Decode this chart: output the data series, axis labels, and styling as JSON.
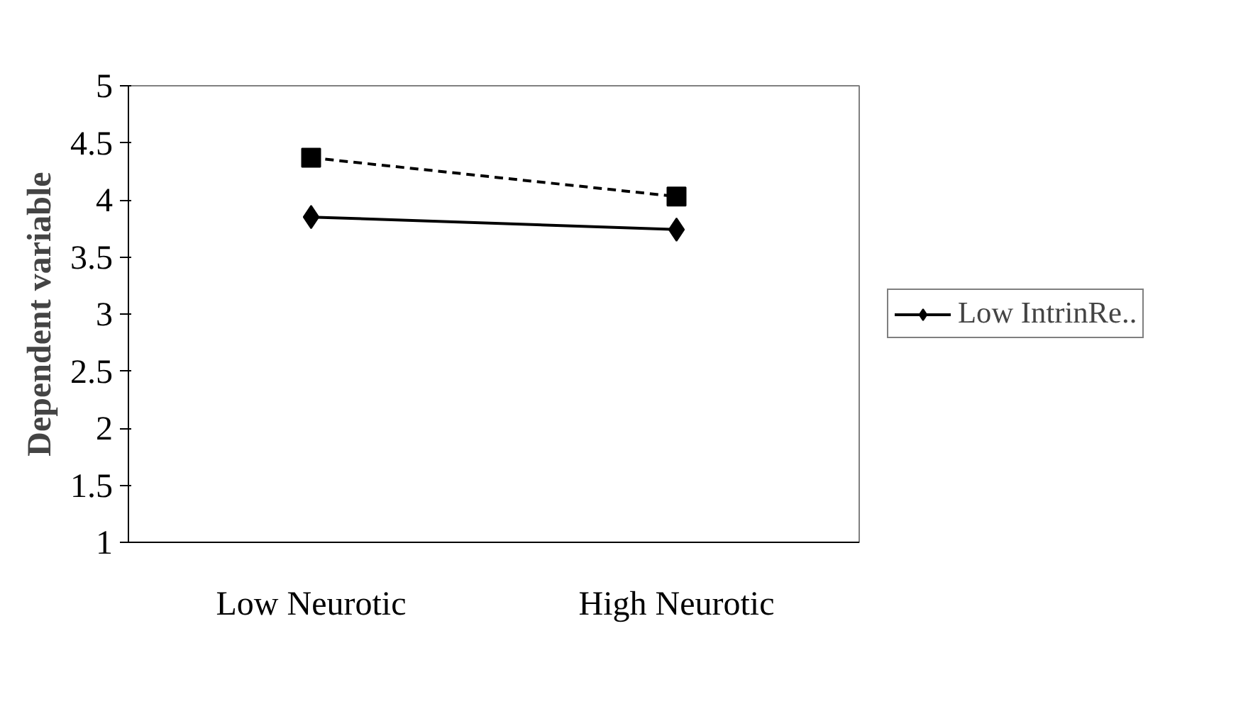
{
  "chart_data": {
    "type": "line",
    "ylabel": "Dependent variable",
    "categories": [
      "Low Neurotic",
      "High Neurotic"
    ],
    "series": [
      {
        "name": "Low IntrinRe..",
        "color": "#000000",
        "values": [
          3.85,
          3.74
        ],
        "marker": "diamond",
        "line_style": "solid"
      },
      {
        "color": "#000000",
        "values": [
          4.37,
          4.03
        ],
        "marker": "square",
        "line_style": "dashed"
      }
    ],
    "ylim": [
      1,
      5
    ],
    "yticks": [
      1,
      1.5,
      2,
      2.5,
      3,
      3.5,
      4,
      4.5,
      5
    ],
    "grid": false,
    "legend": "right"
  }
}
